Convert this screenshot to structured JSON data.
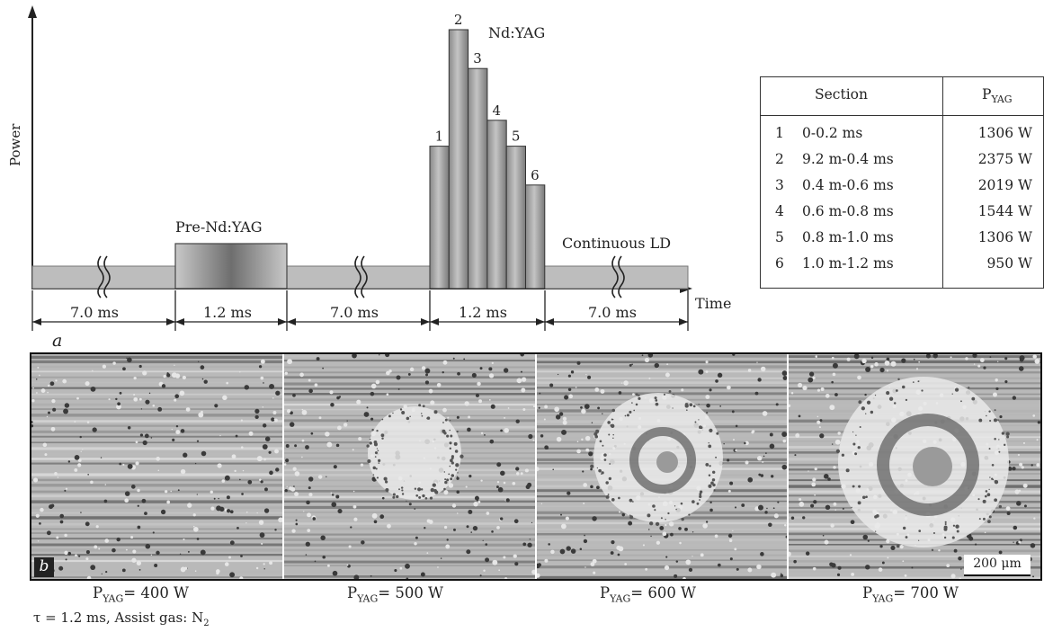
{
  "diagram": {
    "y_axis_label": "Power",
    "x_axis_label": "Time",
    "panel_a_label": "a",
    "pre_label": "Pre-Nd:YAG",
    "nd_label": "Nd:YAG",
    "ld_label": "Continuous LD",
    "pulse_numbers": [
      "1",
      "2",
      "3",
      "4",
      "5",
      "6"
    ],
    "pulse_levels_W": [
      1306,
      2375,
      2019,
      1544,
      1306,
      950
    ],
    "durations": [
      "7.0 ms",
      "1.2 ms",
      "7.0 ms",
      "1.2 ms",
      "7.0 ms"
    ]
  },
  "table": {
    "header_section": "Section",
    "header_power_main": "P",
    "header_power_sub": "YAG",
    "rows": [
      {
        "n": "1",
        "section": "0-0.2 ms",
        "power": "1306 W"
      },
      {
        "n": "2",
        "section": "9.2 m-0.4 ms",
        "power": "2375 W"
      },
      {
        "n": "3",
        "section": "0.4 m-0.6 ms",
        "power": "2019 W"
      },
      {
        "n": "4",
        "section": "0.6 m-0.8 ms",
        "power": "1544 W"
      },
      {
        "n": "5",
        "section": "0.8 m-1.0 ms",
        "power": "1306 W"
      },
      {
        "n": "6",
        "section": "1.0 m-1.2 ms",
        "power": "950 W"
      }
    ]
  },
  "micrographs": {
    "panel_b_label": "b",
    "scale_bar": "200 μm",
    "captions": [
      {
        "main": "P",
        "sub": "YAG",
        "rest": "= 400 W"
      },
      {
        "main": "P",
        "sub": "YAG",
        "rest": "= 500 W"
      },
      {
        "main": "P",
        "sub": "YAG",
        "rest": "= 600 W"
      },
      {
        "main": "P",
        "sub": "YAG",
        "rest": "= 700 W"
      }
    ]
  },
  "footnote": {
    "text": "τ = 1.2 ms, Assist gas: N",
    "sub": "2"
  }
}
